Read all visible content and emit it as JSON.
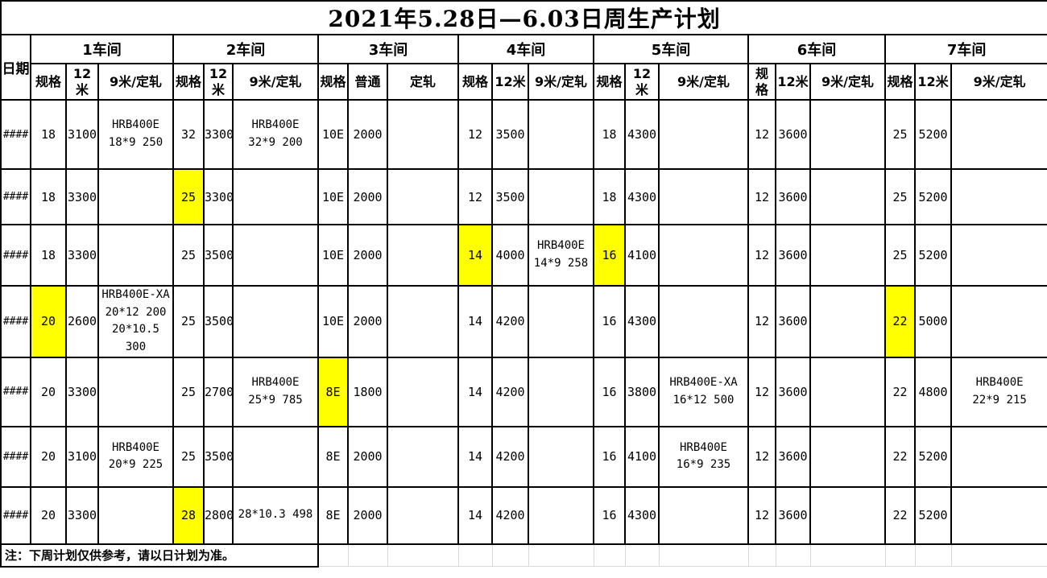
{
  "title": "2021年5.28日—6.03日周生产计划",
  "date_header": "日期",
  "note": "注：下周计划仅供参考，请以日计划为准。",
  "colors": {
    "highlight": "#ffff00",
    "table_border": "#000000",
    "faint_grid": "#d9d9d9",
    "background": "#ffffff"
  },
  "workshops": [
    {
      "name": "1车间",
      "columns": [
        "规格",
        "12米",
        "9米/定轧"
      ]
    },
    {
      "name": "2车间",
      "columns": [
        "规格",
        "12米",
        "9米/定轧"
      ]
    },
    {
      "name": "3车间",
      "columns": [
        "规格",
        "普通",
        "定轧"
      ]
    },
    {
      "name": "4车间",
      "columns": [
        "规格",
        "12米",
        "9米/定轧"
      ]
    },
    {
      "name": "5车间",
      "columns": [
        "规格",
        "12米",
        "9米/定轧"
      ]
    },
    {
      "name": "6车间",
      "columns": [
        "规格",
        "12米",
        "9米/定轧"
      ]
    },
    {
      "name": "7车间",
      "columns": [
        "规格",
        "12米",
        "9米/定轧"
      ]
    }
  ],
  "rows": [
    {
      "date": "####",
      "cells": [
        {
          "spec": "18",
          "qty": "3100",
          "note": "HRB400E\n18*9 250"
        },
        {
          "spec": "32",
          "qty": "3300",
          "note": "HRB400E\n32*9 200"
        },
        {
          "spec": "10E",
          "qty": "2000",
          "note": ""
        },
        {
          "spec": "12",
          "qty": "3500",
          "note": ""
        },
        {
          "spec": "18",
          "qty": "4300",
          "note": ""
        },
        {
          "spec": "12",
          "qty": "3600",
          "note": ""
        },
        {
          "spec": "25",
          "qty": "5200",
          "note": ""
        }
      ]
    },
    {
      "date": "####",
      "cells": [
        {
          "spec": "18",
          "qty": "3300",
          "note": ""
        },
        {
          "spec": "25",
          "qty": "3300",
          "note": "",
          "hl": true
        },
        {
          "spec": "10E",
          "qty": "2000",
          "note": ""
        },
        {
          "spec": "12",
          "qty": "3500",
          "note": ""
        },
        {
          "spec": "18",
          "qty": "4300",
          "note": ""
        },
        {
          "spec": "12",
          "qty": "3600",
          "note": ""
        },
        {
          "spec": "25",
          "qty": "5200",
          "note": ""
        }
      ]
    },
    {
      "date": "####",
      "cells": [
        {
          "spec": "18",
          "qty": "3300",
          "note": ""
        },
        {
          "spec": "25",
          "qty": "3500",
          "note": ""
        },
        {
          "spec": "10E",
          "qty": "2000",
          "note": ""
        },
        {
          "spec": "14",
          "qty": "4000",
          "note": "HRB400E\n14*9 258",
          "hl": true
        },
        {
          "spec": "16",
          "qty": "4100",
          "note": "",
          "hl": true
        },
        {
          "spec": "12",
          "qty": "3600",
          "note": ""
        },
        {
          "spec": "25",
          "qty": "5200",
          "note": ""
        }
      ]
    },
    {
      "date": "####",
      "cells": [
        {
          "spec": "20",
          "qty": "2600",
          "note": "HRB400E-XA\n20*12 200\n20*10.5\n300",
          "hl": true
        },
        {
          "spec": "25",
          "qty": "3500",
          "note": ""
        },
        {
          "spec": "10E",
          "qty": "2000",
          "note": ""
        },
        {
          "spec": "14",
          "qty": "4200",
          "note": ""
        },
        {
          "spec": "16",
          "qty": "4300",
          "note": ""
        },
        {
          "spec": "12",
          "qty": "3600",
          "note": ""
        },
        {
          "spec": "22",
          "qty": "5000",
          "note": "",
          "hl": true
        }
      ]
    },
    {
      "date": "####",
      "cells": [
        {
          "spec": "20",
          "qty": "3300",
          "note": ""
        },
        {
          "spec": "25",
          "qty": "2700",
          "note": "HRB400E\n25*9 785"
        },
        {
          "spec": "8E",
          "qty": "1800",
          "note": "",
          "hl": true
        },
        {
          "spec": "14",
          "qty": "4200",
          "note": ""
        },
        {
          "spec": "16",
          "qty": "3800",
          "note": "HRB400E-XA\n16*12 500"
        },
        {
          "spec": "12",
          "qty": "3600",
          "note": ""
        },
        {
          "spec": "22",
          "qty": "4800",
          "note": "HRB400E\n22*9 215"
        }
      ]
    },
    {
      "date": "####",
      "cells": [
        {
          "spec": "20",
          "qty": "3100",
          "note": "HRB400E\n20*9 225"
        },
        {
          "spec": "25",
          "qty": "3500",
          "note": ""
        },
        {
          "spec": "8E",
          "qty": "2000",
          "note": ""
        },
        {
          "spec": "14",
          "qty": "4200",
          "note": ""
        },
        {
          "spec": "16",
          "qty": "4100",
          "note": "HRB400E\n16*9 235"
        },
        {
          "spec": "12",
          "qty": "3600",
          "note": ""
        },
        {
          "spec": "22",
          "qty": "5200",
          "note": ""
        }
      ]
    },
    {
      "date": "####",
      "cells": [
        {
          "spec": "20",
          "qty": "3300",
          "note": ""
        },
        {
          "spec": "28",
          "qty": "2800",
          "note": "28*10.3 498",
          "hl": true
        },
        {
          "spec": "8E",
          "qty": "2000",
          "note": ""
        },
        {
          "spec": "14",
          "qty": "4200",
          "note": ""
        },
        {
          "spec": "16",
          "qty": "4300",
          "note": ""
        },
        {
          "spec": "12",
          "qty": "3600",
          "note": ""
        },
        {
          "spec": "22",
          "qty": "5200",
          "note": ""
        }
      ]
    }
  ]
}
